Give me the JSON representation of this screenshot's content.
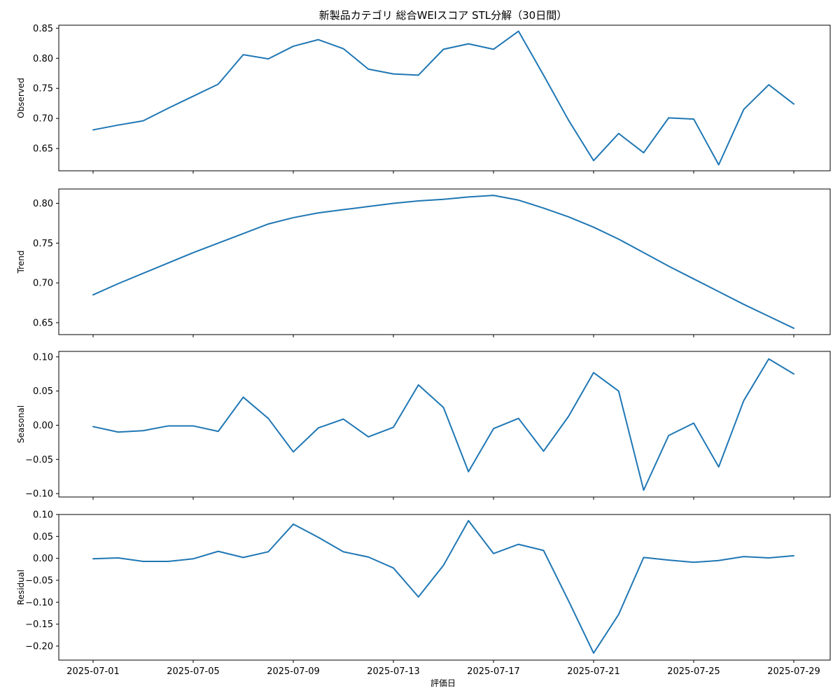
{
  "chart_data": {
    "type": "line",
    "title": "新製品カテゴリ 総合WEIスコア STL分解（30日間）",
    "xlabel": "評価日",
    "x": [
      "2025-07-01",
      "2025-07-02",
      "2025-07-03",
      "2025-07-04",
      "2025-07-05",
      "2025-07-06",
      "2025-07-07",
      "2025-07-08",
      "2025-07-09",
      "2025-07-10",
      "2025-07-11",
      "2025-07-12",
      "2025-07-13",
      "2025-07-14",
      "2025-07-15",
      "2025-07-16",
      "2025-07-17",
      "2025-07-18",
      "2025-07-19",
      "2025-07-20",
      "2025-07-21",
      "2025-07-22",
      "2025-07-23",
      "2025-07-24",
      "2025-07-25",
      "2025-07-26",
      "2025-07-27",
      "2025-07-28",
      "2025-07-29"
    ],
    "x_ticks": [
      "2025-07-01",
      "2025-07-05",
      "2025-07-09",
      "2025-07-13",
      "2025-07-17",
      "2025-07-21",
      "2025-07-25",
      "2025-07-29"
    ],
    "line_color": "#1f77b4",
    "grid": false,
    "panels": [
      {
        "ylabel": "Observed",
        "ylim": [
          0.613,
          0.855
        ],
        "yticks": [
          0.65,
          0.7,
          0.75,
          0.8,
          0.85
        ],
        "ytick_labels": [
          "0.65",
          "0.70",
          "0.75",
          "0.80",
          "0.85"
        ],
        "values": [
          0.681,
          0.689,
          0.696,
          0.717,
          0.737,
          0.757,
          0.806,
          0.799,
          0.82,
          0.831,
          0.816,
          0.782,
          0.774,
          0.772,
          0.815,
          0.824,
          0.815,
          0.845,
          0.772,
          0.697,
          0.63,
          0.675,
          0.643,
          0.701,
          0.699,
          0.623,
          0.715,
          0.756,
          0.724
        ]
      },
      {
        "ylabel": "Trend",
        "ylim": [
          0.635,
          0.818
        ],
        "yticks": [
          0.65,
          0.7,
          0.75,
          0.8
        ],
        "ytick_labels": [
          "0.65",
          "0.70",
          "0.75",
          "0.80"
        ],
        "values": [
          0.685,
          0.699,
          0.712,
          0.725,
          0.738,
          0.75,
          0.762,
          0.774,
          0.782,
          0.788,
          0.792,
          0.796,
          0.8,
          0.803,
          0.805,
          0.808,
          0.81,
          0.804,
          0.794,
          0.783,
          0.77,
          0.755,
          0.738,
          0.721,
          0.705,
          0.689,
          0.673,
          0.658,
          0.643
        ]
      },
      {
        "ylabel": "Seasonal",
        "ylim": [
          -0.105,
          0.108
        ],
        "yticks": [
          -0.1,
          -0.05,
          0.0,
          0.05,
          0.1
        ],
        "ytick_labels": [
          "−0.10",
          "−0.05",
          "0.00",
          "0.05",
          "0.10"
        ],
        "values": [
          -0.002,
          -0.01,
          -0.008,
          -0.001,
          -0.001,
          -0.009,
          0.041,
          0.01,
          -0.039,
          -0.004,
          0.009,
          -0.017,
          -0.003,
          0.059,
          0.026,
          -0.068,
          -0.005,
          0.01,
          -0.038,
          0.013,
          0.077,
          0.05,
          -0.095,
          -0.015,
          0.003,
          -0.061,
          0.036,
          0.097,
          0.075
        ]
      },
      {
        "ylabel": "Residual",
        "ylim": [
          -0.232,
          0.1
        ],
        "yticks": [
          -0.2,
          -0.15,
          -0.1,
          -0.05,
          0.0,
          0.05,
          0.1
        ],
        "ytick_labels": [
          "−0.20",
          "−0.15",
          "−0.10",
          "−0.05",
          "0.00",
          "0.05",
          "0.10"
        ],
        "values": [
          -0.001,
          0.001,
          -0.007,
          -0.007,
          -0.001,
          0.016,
          0.002,
          0.015,
          0.078,
          0.048,
          0.015,
          0.003,
          -0.022,
          -0.088,
          -0.016,
          0.086,
          0.011,
          0.032,
          0.018,
          -0.097,
          -0.216,
          -0.128,
          0.002,
          -0.004,
          -0.009,
          -0.005,
          0.004,
          0.001,
          0.006
        ]
      }
    ]
  }
}
